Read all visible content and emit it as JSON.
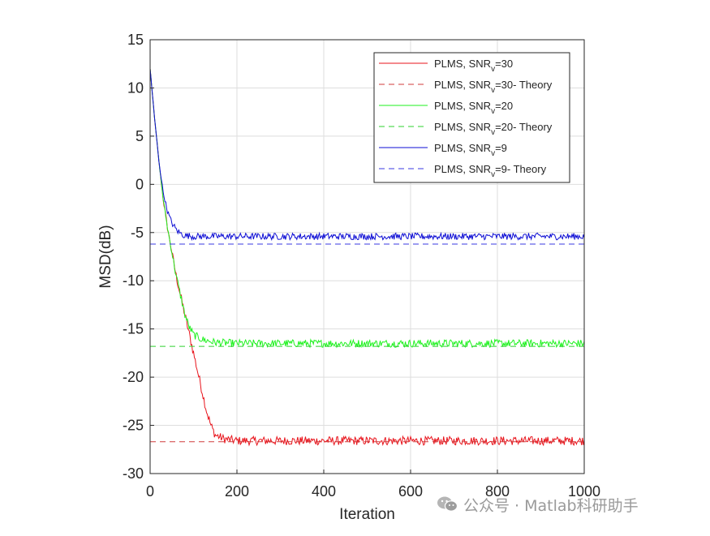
{
  "chart_data": {
    "type": "line",
    "xlabel": "Iteration",
    "ylabel": "MSD(dB)",
    "xlim": [
      0,
      1000
    ],
    "ylim": [
      -30,
      15
    ],
    "xticks": [
      "0",
      "200",
      "400",
      "600",
      "800",
      "1000"
    ],
    "yticks": [
      "15",
      "10",
      "5",
      "0",
      "-5",
      "-10",
      "-15",
      "-20",
      "-25",
      "-30"
    ],
    "grid": true,
    "legend_position": "top-right",
    "series": [
      {
        "name": "PLMS, SNR_v=30",
        "label_main": "PLMS, SNR",
        "label_sub": "v",
        "label_tail": "=30",
        "color": "#e8131b",
        "style": "solid",
        "x": [
          0,
          10,
          20,
          30,
          40,
          50,
          60,
          70,
          80,
          90,
          100,
          110,
          120,
          130,
          140,
          150,
          170,
          200,
          250,
          300,
          400,
          500,
          600,
          700,
          800,
          900,
          1000
        ],
        "y": [
          12,
          7,
          2.5,
          -1.5,
          -4.5,
          -7,
          -9.5,
          -11.5,
          -13.5,
          -15.5,
          -17.5,
          -19.5,
          -21.5,
          -23.5,
          -25,
          -26,
          -26.4,
          -26.6,
          -26.6,
          -26.6,
          -26.6,
          -26.6,
          -26.6,
          -26.6,
          -26.6,
          -26.6,
          -26.6
        ],
        "noise": 0.45
      },
      {
        "name": "PLMS, SNR_v=30- Theory",
        "label_main": "PLMS, SNR",
        "label_sub": "v",
        "label_tail": "=30- Theory",
        "color": "#d03b3b",
        "style": "dashed",
        "x": [
          0,
          1000
        ],
        "y": [
          -26.7,
          -26.7
        ]
      },
      {
        "name": "PLMS, SNR_v=20",
        "label_main": "PLMS, SNR",
        "label_sub": "v",
        "label_tail": "=20",
        "color": "#1ef21e",
        "style": "solid",
        "x": [
          0,
          10,
          20,
          30,
          40,
          50,
          60,
          70,
          80,
          90,
          100,
          120,
          150,
          200,
          300,
          400,
          500,
          600,
          700,
          800,
          900,
          1000
        ],
        "y": [
          12,
          7,
          2.5,
          -1.5,
          -4.5,
          -7,
          -9.5,
          -11.5,
          -13.5,
          -14.8,
          -15.6,
          -16.1,
          -16.4,
          -16.5,
          -16.5,
          -16.5,
          -16.5,
          -16.5,
          -16.5,
          -16.5,
          -16.5,
          -16.5
        ],
        "noise": 0.4
      },
      {
        "name": "PLMS, SNR_v=20- Theory",
        "label_main": "PLMS, SNR",
        "label_sub": "v",
        "label_tail": "=20- Theory",
        "color": "#2ed12e",
        "style": "dashed",
        "x": [
          0,
          1000
        ],
        "y": [
          -16.8,
          -16.8
        ]
      },
      {
        "name": "PLMS, SNR_v=9",
        "label_main": "PLMS, SNR",
        "label_sub": "v",
        "label_tail": "=9",
        "color": "#0c0cd4",
        "style": "solid",
        "x": [
          0,
          10,
          20,
          30,
          40,
          50,
          60,
          70,
          80,
          100,
          150,
          200,
          300,
          400,
          500,
          600,
          700,
          800,
          900,
          1000
        ],
        "y": [
          12,
          7,
          2.5,
          -0.8,
          -2.8,
          -4,
          -4.7,
          -5.1,
          -5.3,
          -5.4,
          -5.4,
          -5.4,
          -5.4,
          -5.4,
          -5.4,
          -5.4,
          -5.4,
          -5.4,
          -5.4,
          -5.4
        ],
        "noise": 0.35
      },
      {
        "name": "PLMS, SNR_v=9- Theory",
        "label_main": "PLMS, SNR",
        "label_sub": "v",
        "label_tail": "=9- Theory",
        "color": "#3a3ae0",
        "style": "dashed",
        "x": [
          0,
          1000
        ],
        "y": [
          -6.2,
          -6.2
        ]
      }
    ]
  },
  "watermark": {
    "text": "公众号 · Matlab科研助手",
    "icon": "wechat-icon"
  }
}
